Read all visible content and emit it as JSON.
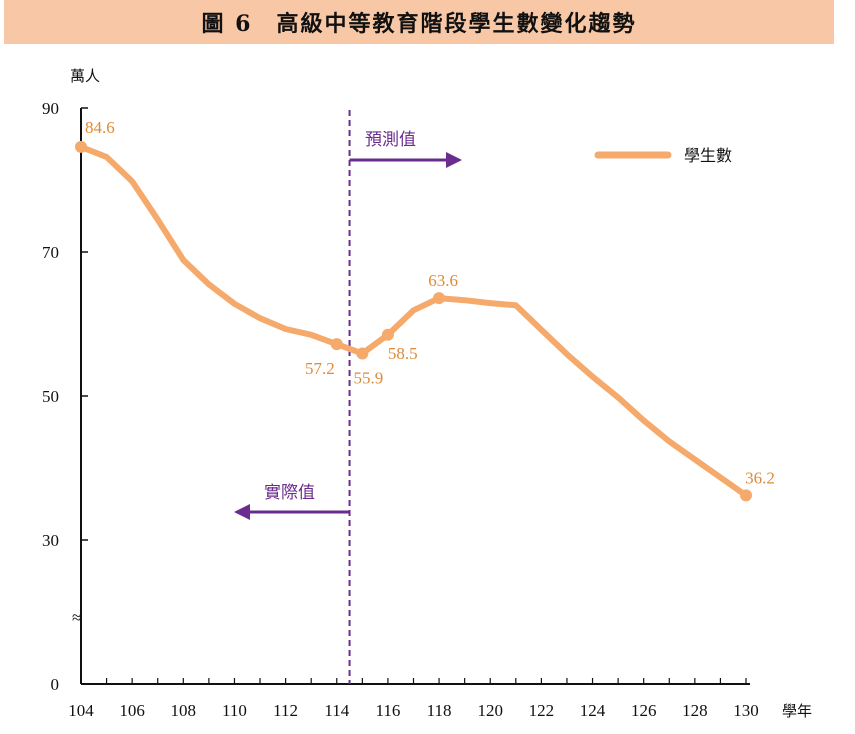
{
  "chart_data": {
    "type": "line",
    "title": "圖 6　高級中等教育階段學生數變化趨勢",
    "ylabel": "萬人",
    "xlabel": "學年",
    "ylim": [
      0,
      90
    ],
    "axis_break": "≈",
    "y_ticks": [
      "0",
      "30",
      "50",
      "70",
      "90"
    ],
    "x_ticks": [
      "104",
      "106",
      "108",
      "110",
      "112",
      "114",
      "116",
      "118",
      "120",
      "122",
      "124",
      "126",
      "128",
      "130"
    ],
    "grid": false,
    "legend_position": "top-right",
    "colors": {
      "series": "#f5a96b",
      "point": "#f5a96b",
      "data_label": "#e08a35",
      "divider": "#6a2c8e",
      "title_bg": "#f8c8a6"
    },
    "x": [
      104,
      105,
      106,
      107,
      108,
      109,
      110,
      111,
      112,
      113,
      114,
      115,
      116,
      117,
      118,
      119,
      120,
      121,
      122,
      123,
      124,
      125,
      126,
      127,
      128,
      129,
      130
    ],
    "series": [
      {
        "name": "學生數",
        "values": [
          84.6,
          83.2,
          79.8,
          74.5,
          68.9,
          65.5,
          62.8,
          60.8,
          59.3,
          58.5,
          57.2,
          55.9,
          58.5,
          61.9,
          63.6,
          63.3,
          62.9,
          62.6,
          59.2,
          55.8,
          52.7,
          49.8,
          46.6,
          43.7,
          41.2,
          38.7,
          36.2
        ]
      }
    ],
    "labeled_points": [
      {
        "x": 104,
        "y": 84.6,
        "label": "84.6"
      },
      {
        "x": 114,
        "y": 57.2,
        "label": "57.2"
      },
      {
        "x": 115,
        "y": 55.9,
        "label": "55.9"
      },
      {
        "x": 116,
        "y": 58.5,
        "label": "58.5"
      },
      {
        "x": 118,
        "y": 63.6,
        "label": "63.6"
      },
      {
        "x": 130,
        "y": 36.2,
        "label": "36.2"
      }
    ],
    "divider_x": 114.5,
    "annotations": {
      "forecast": "預測值",
      "actual": "實際值"
    }
  }
}
